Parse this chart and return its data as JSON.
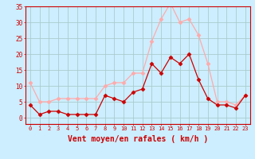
{
  "hours": [
    0,
    1,
    2,
    3,
    4,
    5,
    6,
    7,
    8,
    9,
    10,
    11,
    12,
    13,
    14,
    15,
    16,
    17,
    18,
    19,
    20,
    21,
    22,
    23
  ],
  "wind_avg": [
    4,
    1,
    2,
    2,
    1,
    1,
    1,
    1,
    7,
    6,
    5,
    8,
    9,
    17,
    14,
    19,
    17,
    20,
    12,
    6,
    4,
    4,
    3,
    7
  ],
  "wind_gust": [
    11,
    5,
    5,
    6,
    6,
    6,
    6,
    6,
    10,
    11,
    11,
    14,
    14,
    24,
    31,
    36,
    30,
    31,
    26,
    17,
    5,
    5,
    4,
    7
  ],
  "avg_color": "#cc0000",
  "gust_color": "#ffaaaa",
  "bg_color": "#cceeff",
  "grid_color": "#aacccc",
  "axis_color": "#cc0000",
  "xlabel": "Vent moyen/en rafales ( km/h )",
  "ylim": [
    -2,
    35
  ],
  "yticks": [
    0,
    5,
    10,
    15,
    20,
    25,
    30,
    35
  ],
  "marker": "D",
  "markersize": 2.5,
  "linewidth": 0.9
}
